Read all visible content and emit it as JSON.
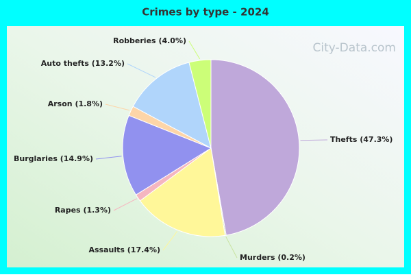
{
  "chart_data": {
    "type": "pie",
    "title": "Crimes by type - 2024",
    "categories": [
      "Thefts",
      "Murders",
      "Assaults",
      "Rapes",
      "Burglaries",
      "Arson",
      "Auto thefts",
      "Robberies"
    ],
    "values": [
      47.3,
      0.2,
      17.4,
      1.3,
      14.9,
      1.8,
      13.2,
      4.0
    ],
    "value_labels": [
      "(47.3%)",
      "(0.2%)",
      "(17.4%)",
      "(1.3%)",
      "(14.9%)",
      "(1.8%)",
      "(13.2%)",
      "(4.0%)"
    ],
    "colors": [
      "#bfa8da",
      "#c8e3a0",
      "#fff799",
      "#f5b6c0",
      "#9191ef",
      "#fdd5a8",
      "#b0d5fb",
      "#ccfe78"
    ],
    "watermark": "City-Data.com"
  }
}
